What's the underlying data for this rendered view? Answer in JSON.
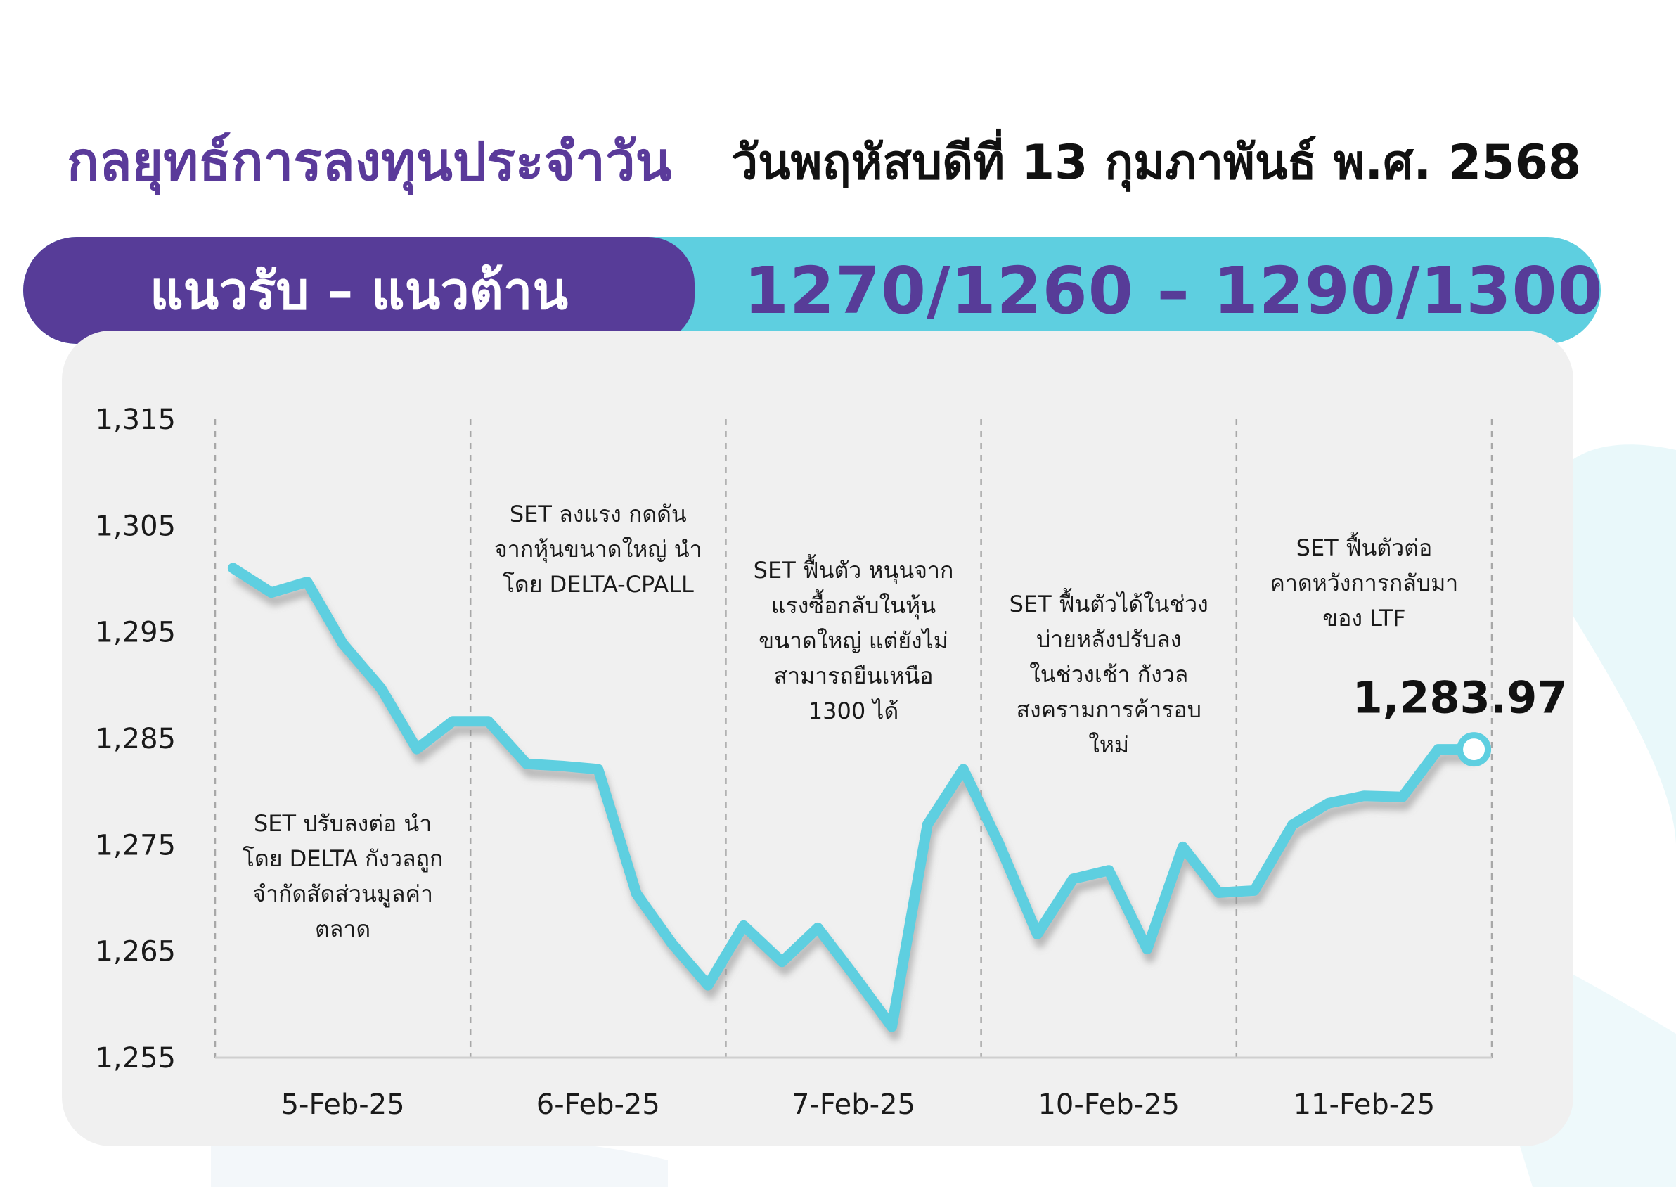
{
  "header": {
    "title": "กลยุทธ์การลงทุนประจำวัน",
    "date": "วันพฤหัสบดีที่ 13 กุมภาพันธ์ พ.ศ. 2568"
  },
  "banner": {
    "label": "แนวรับ – แนวต้าน",
    "value": "1270/1260 – 1290/1300"
  },
  "colors": {
    "purple": "#573c98",
    "cyan": "#5ecfe0",
    "line": "#5ecfe0",
    "panel": "#f0f0f0"
  },
  "chart_data": {
    "type": "line",
    "title": "",
    "xlabel": "",
    "ylabel": "",
    "ylim": [
      1255,
      1315
    ],
    "yticks": [
      1315,
      1305,
      1295,
      1285,
      1275,
      1265,
      1255
    ],
    "ytick_labels": [
      "1,315",
      "1,305",
      "1,295",
      "1,285",
      "1,275",
      "1,265",
      "1,255"
    ],
    "categories": [
      "5-Feb-25",
      "6-Feb-25",
      "7-Feb-25",
      "10-Feb-25",
      "11-Feb-25"
    ],
    "grid": "vertical dashed separators",
    "points": [
      {
        "x": 0.07,
        "y": 1301.0
      },
      {
        "x": 0.22,
        "y": 1298.7
      },
      {
        "x": 0.36,
        "y": 1299.7
      },
      {
        "x": 0.5,
        "y": 1293.9
      },
      {
        "x": 0.65,
        "y": 1289.7
      },
      {
        "x": 0.79,
        "y": 1284.0
      },
      {
        "x": 0.93,
        "y": 1286.6
      },
      {
        "x": 1.07,
        "y": 1286.6
      },
      {
        "x": 1.22,
        "y": 1282.6
      },
      {
        "x": 1.36,
        "y": 1282.4
      },
      {
        "x": 1.5,
        "y": 1282.1
      },
      {
        "x": 1.65,
        "y": 1270.4
      },
      {
        "x": 1.79,
        "y": 1265.7
      },
      {
        "x": 1.93,
        "y": 1261.8
      },
      {
        "x": 2.07,
        "y": 1267.4
      },
      {
        "x": 2.22,
        "y": 1264.0
      },
      {
        "x": 2.36,
        "y": 1267.2
      },
      {
        "x": 2.5,
        "y": 1262.8
      },
      {
        "x": 2.65,
        "y": 1257.9
      },
      {
        "x": 2.79,
        "y": 1276.9
      },
      {
        "x": 2.93,
        "y": 1282.1
      },
      {
        "x": 3.07,
        "y": 1275.1
      },
      {
        "x": 3.22,
        "y": 1266.6
      },
      {
        "x": 3.36,
        "y": 1271.8
      },
      {
        "x": 3.5,
        "y": 1272.6
      },
      {
        "x": 3.65,
        "y": 1265.2
      },
      {
        "x": 3.79,
        "y": 1274.8
      },
      {
        "x": 3.93,
        "y": 1270.5
      },
      {
        "x": 4.07,
        "y": 1270.7
      },
      {
        "x": 4.22,
        "y": 1276.9
      },
      {
        "x": 4.36,
        "y": 1278.9
      },
      {
        "x": 4.5,
        "y": 1279.6
      },
      {
        "x": 4.65,
        "y": 1279.5
      },
      {
        "x": 4.79,
        "y": 1283.97
      },
      {
        "x": 4.93,
        "y": 1283.97
      }
    ],
    "last_value": 1283.97,
    "last_value_label": "1,283.97",
    "annotations": [
      {
        "category": "5-Feb-25",
        "lines": [
          "SET ปรับลงต่อ นำ",
          "โดย DELTA กังวลถูก",
          "จำกัดสัดส่วนมูลค่า",
          "ตลาด"
        ]
      },
      {
        "category": "6-Feb-25",
        "lines": [
          "SET ลงแรง กดดัน",
          "จากหุ้นขนาดใหญ่ นำ",
          "โดย DELTA-CPALL"
        ]
      },
      {
        "category": "7-Feb-25",
        "lines": [
          "SET ฟื้นตัว หนุนจาก",
          "แรงซื้อกลับในหุ้น",
          "ขนาดใหญ่ แต่ยังไม่",
          "สามารถยืนเหนือ",
          "1300 ได้"
        ]
      },
      {
        "category": "10-Feb-25",
        "lines": [
          "SET ฟื้นตัวได้ในช่วง",
          "บ่ายหลังปรับลง",
          "ในช่วงเช้า กังวล",
          "สงครามการค้ารอบ",
          "ใหม่"
        ]
      },
      {
        "category": "11-Feb-25",
        "lines": [
          "SET ฟื้นตัวต่อ",
          "คาดหวังการกลับมา",
          "ของ LTF"
        ]
      }
    ]
  }
}
